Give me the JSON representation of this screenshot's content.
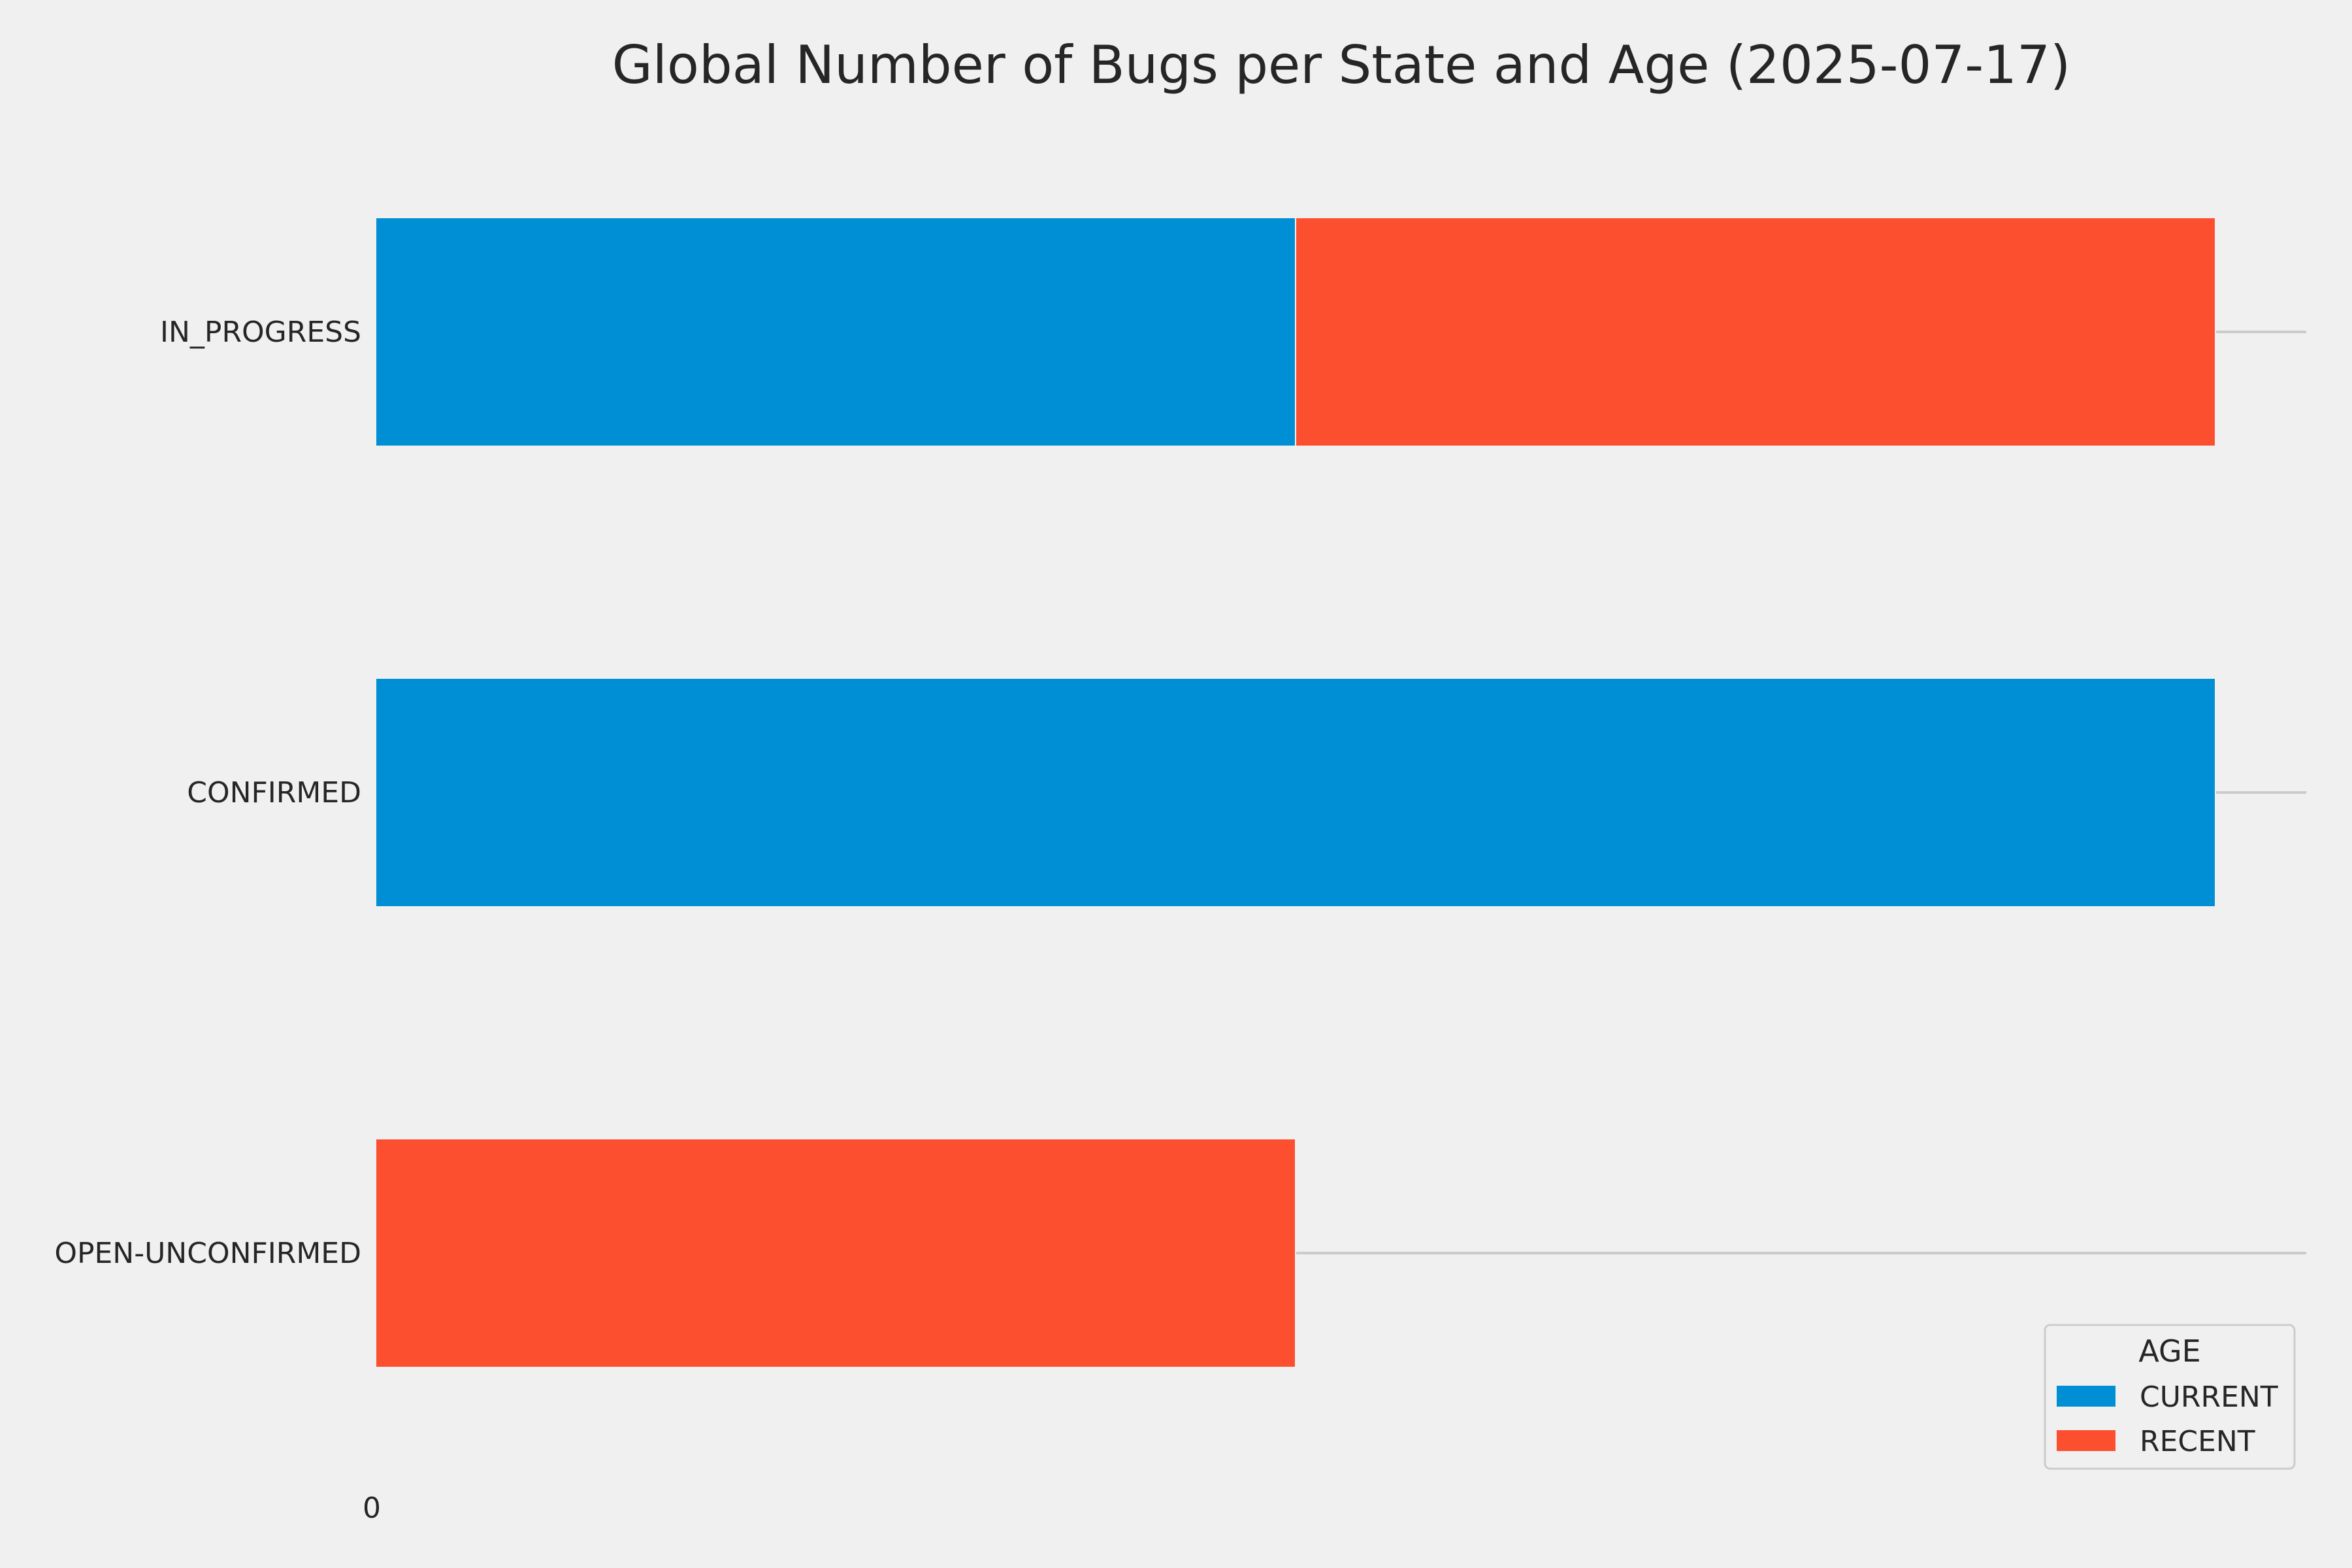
{
  "chart_data": {
    "type": "bar",
    "orientation": "horizontal",
    "stacked": true,
    "title": "Global Number of Bugs per State and Age (2025-07-17)",
    "categories": [
      "IN_PROGRESS",
      "CONFIRMED",
      "OPEN-UNCONFIRMED"
    ],
    "series": [
      {
        "name": "CURRENT",
        "values": [
          1,
          2,
          0
        ],
        "color": "#008fd5"
      },
      {
        "name": "RECENT",
        "values": [
          1,
          0,
          1
        ],
        "color": "#fc4f30"
      }
    ],
    "xlim": [
      0,
      2.1
    ],
    "x_ticks": [
      0
    ],
    "x_tick_labels": [
      "0"
    ],
    "grid": true,
    "legend": {
      "title": "AGE",
      "position": "bottom-right"
    }
  }
}
